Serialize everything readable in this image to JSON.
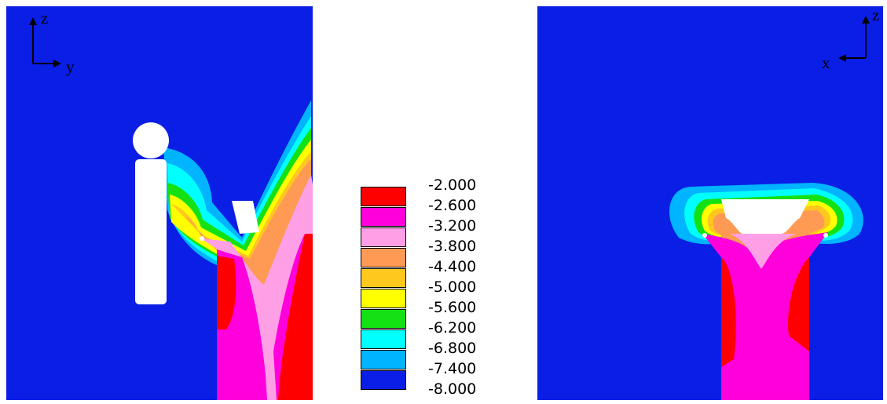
{
  "left_panel": {
    "axis_up": "z",
    "axis_right": "y"
  },
  "right_panel": {
    "axis_up": "z",
    "axis_left": "x"
  },
  "legend": {
    "labels": [
      "-2.000",
      "-2.600",
      "-3.200",
      "-3.800",
      "-4.400",
      "-5.000",
      "-5.600",
      "-6.200",
      "-6.800",
      "-7.400",
      "-8.000"
    ],
    "colors": [
      "#ff0000",
      "#ff00dd",
      "#ffa0e6",
      "#ff9a55",
      "#ffc81e",
      "#ffff00",
      "#14e114",
      "#00ffff",
      "#00b4ff",
      "#0a1ee6"
    ]
  },
  "colors": {
    "background_field": "#0a1ee6",
    "obstacle": "#ffffff"
  }
}
